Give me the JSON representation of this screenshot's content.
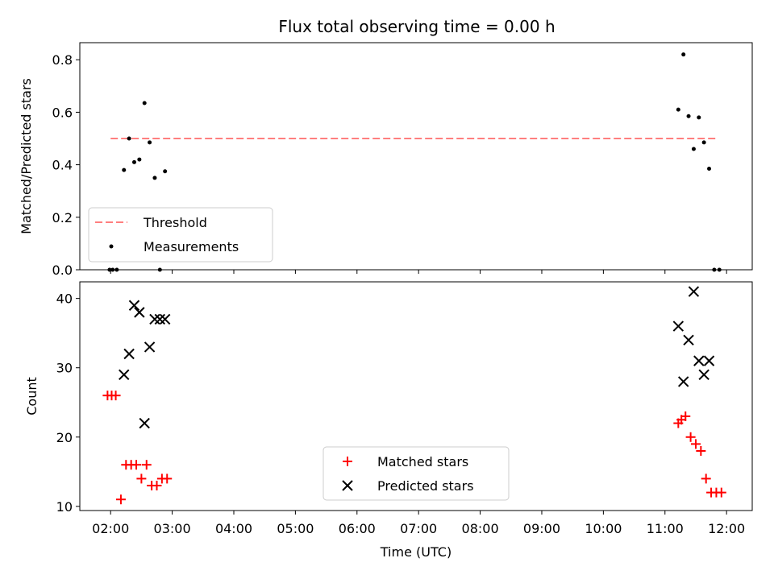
{
  "chart_data": [
    {
      "type": "scatter",
      "title": "Flux total observing time = 0.00 h",
      "xlabel": "",
      "ylabel": "Matched/Predicted stars",
      "xlim": [
        "01:30",
        "12:25"
      ],
      "ylim": [
        0,
        0.865
      ],
      "yticks": [
        "0.0",
        "0.2",
        "0.4",
        "0.6",
        "0.8"
      ],
      "ytick_values": [
        0,
        0.2,
        0.4,
        0.6,
        0.8
      ],
      "threshold": {
        "name": "Threshold",
        "value": 0.5,
        "from": "02:00",
        "to": "11:50",
        "color": "#ff7f7f"
      },
      "legend": {
        "placement": "lower-left",
        "entries": [
          "Threshold",
          "Measurements"
        ]
      },
      "series": [
        {
          "name": "Measurements",
          "color": "#000000",
          "marker": "dot",
          "x": [
            "01:59",
            "02:02",
            "02:06",
            "02:13",
            "02:18",
            "02:23",
            "02:28",
            "02:33",
            "02:38",
            "02:43",
            "02:48",
            "02:53",
            "11:13",
            "11:18",
            "11:23",
            "11:28",
            "11:33",
            "11:38",
            "11:43",
            "11:48",
            "11:53"
          ],
          "y": [
            0.0,
            0.0,
            0.0,
            0.38,
            0.5,
            0.41,
            0.42,
            0.635,
            0.485,
            0.35,
            0.0,
            0.375,
            0.61,
            0.82,
            0.585,
            0.46,
            0.58,
            0.485,
            0.385,
            0.0,
            0.0
          ]
        }
      ]
    },
    {
      "type": "scatter",
      "title": "",
      "xlabel": "Time (UTC)",
      "ylabel": "Count",
      "xlim": [
        "01:30",
        "12:25"
      ],
      "ylim": [
        9.4,
        42.4
      ],
      "xticks": [
        "02:00",
        "03:00",
        "04:00",
        "05:00",
        "06:00",
        "07:00",
        "08:00",
        "09:00",
        "10:00",
        "11:00",
        "12:00"
      ],
      "yticks": [
        "10",
        "20",
        "30",
        "40"
      ],
      "ytick_values": [
        10,
        20,
        30,
        40
      ],
      "legend": {
        "placement": "lower-center",
        "entries": [
          "Matched stars",
          "Predicted stars"
        ]
      },
      "series": [
        {
          "name": "Matched stars",
          "color": "#ff0000",
          "marker": "plus",
          "x": [
            "01:57",
            "02:01",
            "02:05",
            "02:10",
            "02:15",
            "02:20",
            "02:25",
            "02:30",
            "02:35",
            "02:40",
            "02:45",
            "02:50",
            "02:55",
            "11:13",
            "11:16",
            "11:20",
            "11:25",
            "11:30",
            "11:35",
            "11:40",
            "11:45",
            "11:50",
            "11:55"
          ],
          "y": [
            26,
            26,
            26,
            11,
            16,
            16,
            16,
            14,
            16,
            13,
            13,
            14,
            14,
            22,
            22.5,
            23,
            20,
            19,
            18,
            14,
            12,
            12,
            12
          ]
        },
        {
          "name": "Predicted stars",
          "color": "#000000",
          "marker": "cross",
          "x": [
            "02:13",
            "02:18",
            "02:23",
            "02:28",
            "02:33",
            "02:38",
            "02:43",
            "02:48",
            "02:53",
            "11:13",
            "11:18",
            "11:23",
            "11:28",
            "11:33",
            "11:38",
            "11:43"
          ],
          "y": [
            29,
            32,
            39,
            38,
            22,
            33,
            37,
            37,
            37,
            36,
            28,
            34,
            41,
            31,
            29,
            31
          ]
        }
      ]
    }
  ]
}
